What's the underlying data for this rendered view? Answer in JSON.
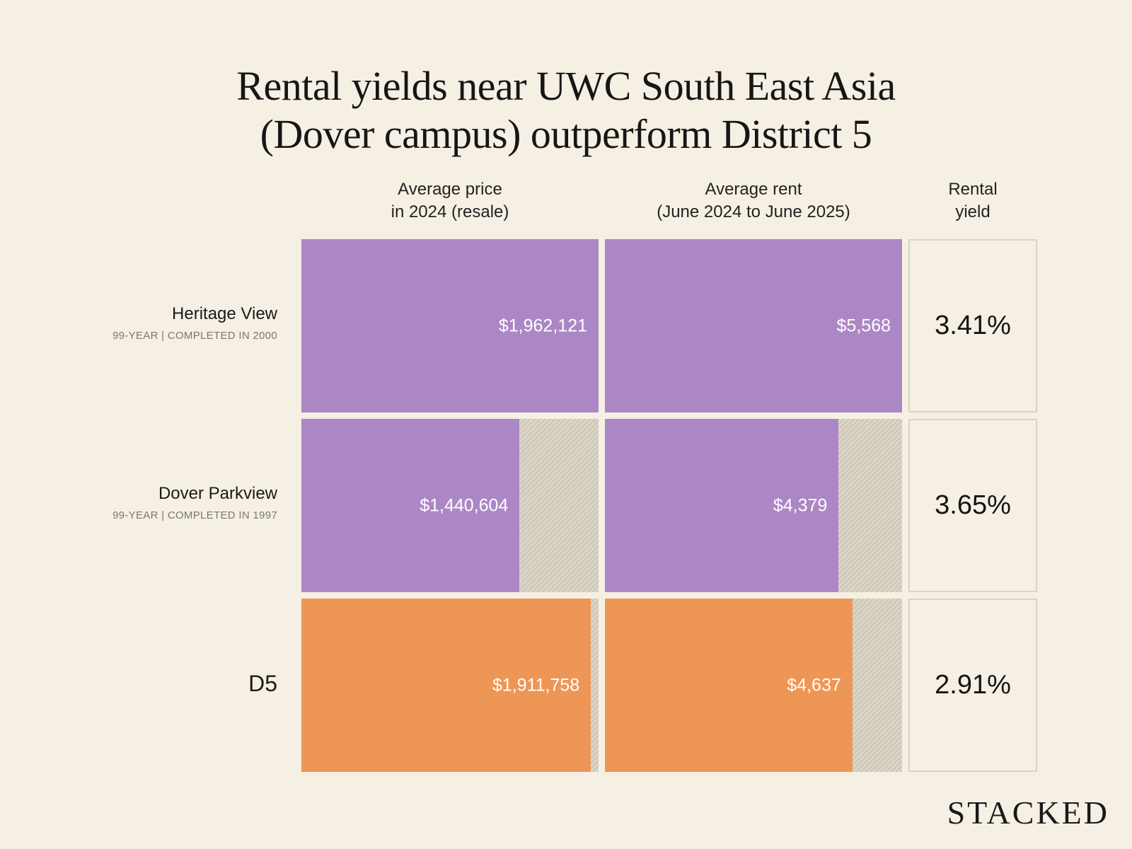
{
  "title_line1": "Rental yields near UWC South East Asia",
  "title_line2": "(Dover campus) outperform District 5",
  "brand": "STACKED",
  "colors": {
    "purple": "#ac87c5",
    "orange": "#ee9656",
    "background": "#f5f0e3",
    "hatch": "#d3ccbd"
  },
  "chart_data": {
    "type": "bar",
    "columns": [
      {
        "key": "price",
        "label_line1": "Average price",
        "label_line2": "in 2024 (resale)"
      },
      {
        "key": "rent",
        "label_line1": "Average rent",
        "label_line2": "(June 2024 to June 2025)"
      },
      {
        "key": "yield",
        "label_line1": "Rental",
        "label_line2": "yield"
      }
    ],
    "rows": [
      {
        "name": "Heritage View",
        "sub": "99-YEAR | COMPLETED IN 2000",
        "color": "#ac87c5",
        "price": 1962121,
        "price_label": "$1,962,121",
        "rent": 5568,
        "rent_label": "$5,568",
        "yield_label": "3.41%"
      },
      {
        "name": "Dover Parkview",
        "sub": "99-YEAR | COMPLETED IN 1997",
        "color": "#ac87c5",
        "price": 1440604,
        "price_label": "$1,440,604",
        "rent": 4379,
        "rent_label": "$4,379",
        "yield_label": "3.65%"
      },
      {
        "name": "D5",
        "sub": "",
        "color": "#ee9656",
        "price": 1911758,
        "price_label": "$1,911,758",
        "rent": 4637,
        "rent_label": "$4,637",
        "yield_label": "2.91%"
      }
    ]
  }
}
